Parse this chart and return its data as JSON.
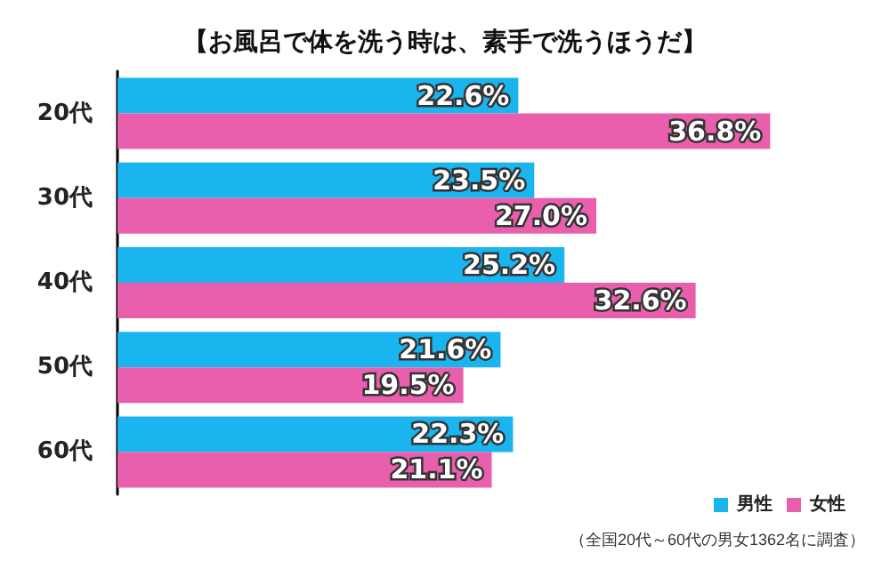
{
  "chart_data": {
    "type": "bar",
    "orientation": "horizontal",
    "title": "【お風呂で体を洗う時は、素手で洗うほうだ】",
    "categories": [
      "20代",
      "30代",
      "40代",
      "50代",
      "60代"
    ],
    "series": [
      {
        "name": "男性",
        "color": "#1ab4ee",
        "values": [
          22.6,
          23.5,
          25.2,
          21.6,
          22.3
        ],
        "value_labels": [
          "22.6%",
          "23.5%",
          "25.2%",
          "21.6%",
          "22.3%"
        ]
      },
      {
        "name": "女性",
        "color": "#e95fae",
        "values": [
          36.8,
          27.0,
          32.6,
          19.5,
          21.1
        ],
        "value_labels": [
          "36.8%",
          "27.0%",
          "32.6%",
          "19.5%",
          "21.1%"
        ]
      }
    ],
    "legend": "bottom right",
    "grid": false,
    "annotations": [
      "（全国20代～60代の男女1362名に調査）"
    ]
  }
}
